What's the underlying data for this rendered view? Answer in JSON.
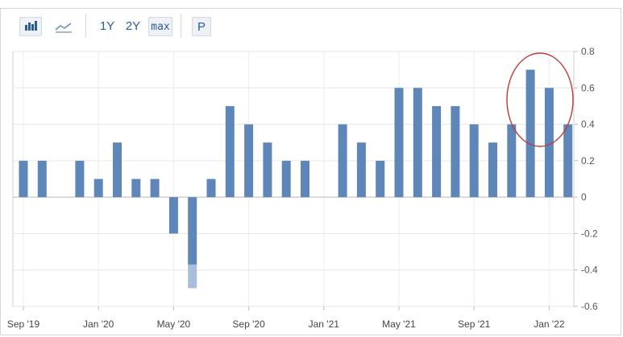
{
  "toolbar": {
    "bar_icon": "bar-chart-icon",
    "line_icon": "line-chart-icon",
    "range_1y": "1Y",
    "range_2y": "2Y",
    "range_max": "max",
    "print_label": "P"
  },
  "chart_data": {
    "type": "bar",
    "categories": [
      "Sep '19",
      "Oct '19",
      "Nov '19",
      "Dec '19",
      "Jan '20",
      "Feb '20",
      "Mar '20",
      "Apr '20",
      "May '20",
      "Jun '20",
      "Jul '20",
      "Aug '20",
      "Sep '20",
      "Oct '20",
      "Nov '20",
      "Dec '20",
      "Jan '21",
      "Feb '21",
      "Mar '21",
      "Apr '21",
      "May '21",
      "Jun '21",
      "Jul '21",
      "Aug '21",
      "Sep '21",
      "Oct '21",
      "Nov '21",
      "Dec '21",
      "Jan '22",
      "Feb '22"
    ],
    "values": [
      0.2,
      0.2,
      null,
      0.2,
      0.1,
      0.3,
      0.1,
      0.1,
      -0.2,
      -0.5,
      0.1,
      0.5,
      0.4,
      0.3,
      0.2,
      0.2,
      null,
      0.4,
      0.3,
      0.2,
      0.6,
      0.6,
      0.5,
      0.5,
      0.4,
      0.3,
      0.4,
      0.7,
      0.6,
      0.4
    ],
    "x_tick_labels": [
      "Sep '19",
      "Jan '20",
      "May '20",
      "Sep '20",
      "Jan '21",
      "May '21",
      "Sep '21",
      "Jan '22"
    ],
    "y_tick_labels": [
      "0.8",
      "0.6",
      "0.4",
      "0.2",
      "0",
      "-0.2",
      "-0.4",
      "-0.6"
    ],
    "ylim": [
      -0.6,
      0.8
    ],
    "y_axis_side": "right",
    "grid": true,
    "bar_color": "#5f86b8",
    "clipped_bar_color": "#a8bfdc",
    "annotation": {
      "type": "circle",
      "color": "#c0393b",
      "around": [
        "Dec '21",
        "Jan '22",
        "Feb '22"
      ]
    }
  }
}
